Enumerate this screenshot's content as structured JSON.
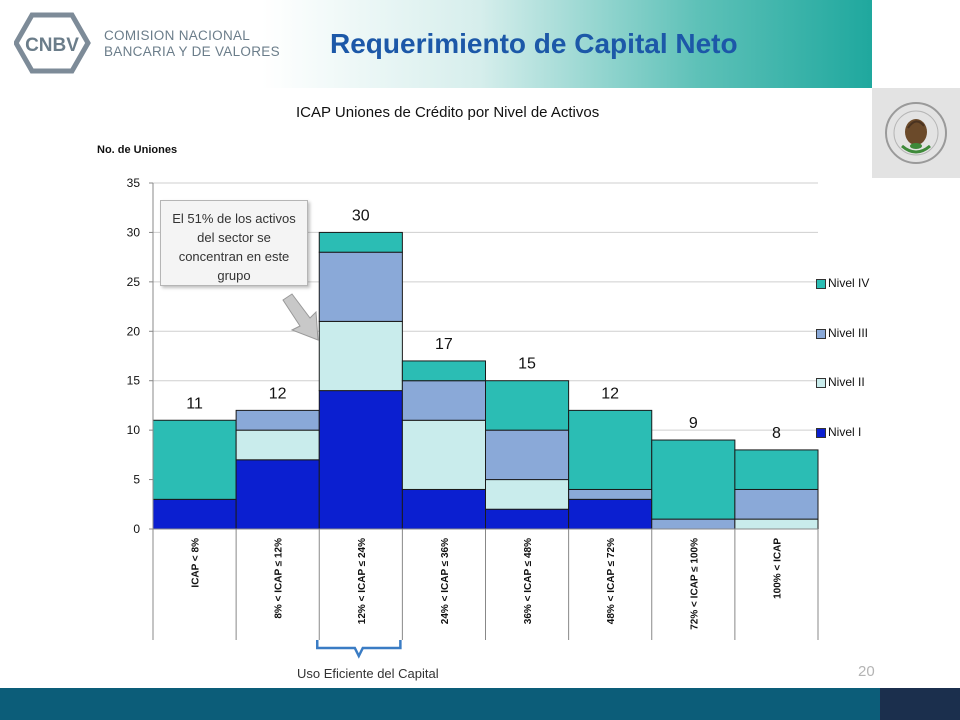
{
  "header": {
    "logo_abbr": "CNBV",
    "logo_line1": "COMISION NACIONAL",
    "logo_line2": "BANCARIA Y DE VALORES",
    "title": "Requerimiento de Capital Neto"
  },
  "annotation": {
    "lines": [
      "El 51% de los activos",
      "del sector se",
      "concentran en este",
      "grupo"
    ]
  },
  "bracket_label": "Uso Eficiente del Capital",
  "page_number": "20",
  "colors": {
    "nivel_iv": "#2bbdb4",
    "nivel_iii": "#8aa9d8",
    "nivel_ii": "#c9ecec",
    "nivel_i": "#0b1fd0",
    "title": "#1c58a8",
    "footer": "#0c5d79"
  },
  "chart_data": {
    "type": "bar",
    "stacked": true,
    "title": "ICAP Uniones de Crédito por Nivel de Activos",
    "ylabel": "No. de Uniones",
    "xlabel": "",
    "ylim": [
      0,
      35
    ],
    "yticks": [
      0,
      5,
      10,
      15,
      20,
      25,
      30,
      35
    ],
    "grid": true,
    "legend_position": "right",
    "categories": [
      "ICAP < 8%",
      "8% < ICAP ≤ 12%",
      "12% < ICAP ≤ 24%",
      "24% < ICAP ≤ 36%",
      "36% < ICAP ≤ 48%",
      "48% < ICAP ≤ 72%",
      "72% < ICAP ≤ 100%",
      "100% < ICAP"
    ],
    "series": [
      {
        "name": "Nivel I",
        "values": [
          3,
          7,
          14,
          4,
          2,
          3,
          0,
          0
        ]
      },
      {
        "name": "Nivel II",
        "values": [
          0,
          3,
          7,
          7,
          3,
          0,
          0,
          1
        ]
      },
      {
        "name": "Nivel III",
        "values": [
          0,
          2,
          7,
          4,
          5,
          1,
          1,
          3
        ]
      },
      {
        "name": "Nivel IV",
        "values": [
          8,
          0,
          2,
          2,
          5,
          8,
          8,
          4
        ]
      }
    ],
    "totals": [
      11,
      12,
      30,
      17,
      15,
      12,
      9,
      8
    ],
    "legend_order": [
      "Nivel IV",
      "Nivel III",
      "Nivel II",
      "Nivel I"
    ]
  }
}
